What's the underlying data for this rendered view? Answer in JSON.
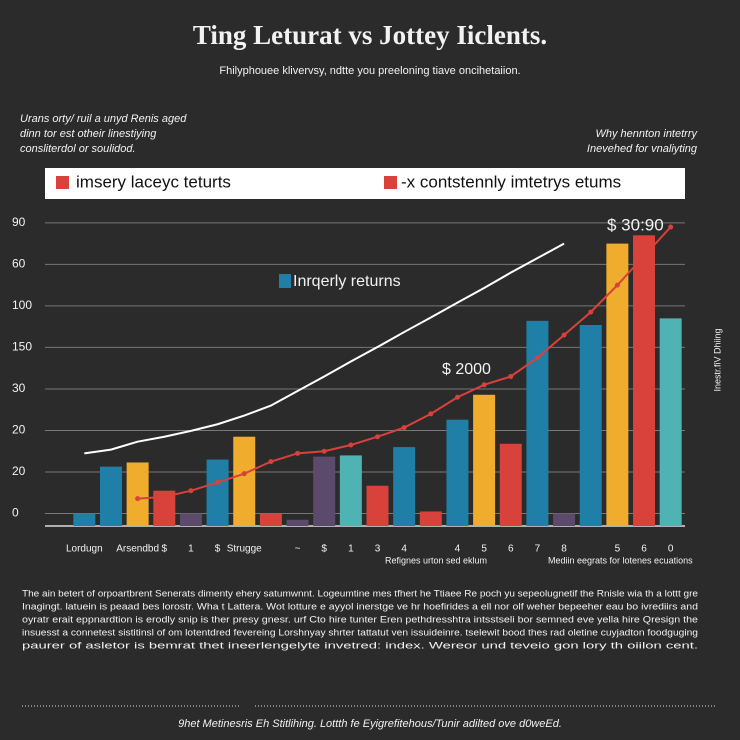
{
  "chart_data": {
    "type": "bar",
    "title": "Ting Leturat vs Jottey Iiclents.",
    "subtitle": "Fhilyphouee klivervsy, ndtte you preeloning tiave oncihetaiion.",
    "legend": [
      {
        "label": "imsery laceyc teturts",
        "color": "#d9413b"
      },
      {
        "label": "-x contstennly imtetrys etums",
        "color": "#d9413b"
      }
    ],
    "annotations": [
      "Inrqerly returns",
      "$ 30:90",
      "$ 2000"
    ],
    "ylabel": "Inestr.fiV Dhiing",
    "xnotes": [
      "Refignes urton sed eklum",
      "Mediin eegrats for lotenes ecuations"
    ],
    "categories": [
      "Lordugn",
      null,
      "Arsendbd",
      "$",
      "1",
      "$",
      "Strugge",
      null,
      "~",
      "$",
      "1",
      "3",
      "4",
      null,
      "4",
      "5",
      "6",
      "7",
      "8",
      null,
      "5",
      "6",
      "0"
    ],
    "ylim": [
      -0.3,
      7.55
    ],
    "yticks": [
      {
        "value": 0,
        "label": "0"
      },
      {
        "value": 1,
        "label": "20"
      },
      {
        "value": 2,
        "label": "20"
      },
      {
        "value": 3,
        "label": "30"
      },
      {
        "value": 4,
        "label": "150"
      },
      {
        "value": 5,
        "label": "100"
      },
      {
        "value": 6,
        "label": "60"
      },
      {
        "value": 7,
        "label": "90"
      }
    ],
    "grid": true,
    "series": [
      {
        "type": "bar",
        "colors": [
          "#1f7fa6",
          "#1f7fa6",
          "#f0ac2c",
          "#d9413b",
          "#5b4a6b",
          "#1f7fa6",
          "#f0ac2c",
          "#d9413b",
          "#5b4a6b",
          "#5b4a6b",
          "#4fb3b3",
          "#d9413b",
          "#1f7fa6",
          "#d9413b",
          "#1f7fa6",
          "#f0ac2c",
          "#d9413b",
          "#1f7fa6",
          "#5b4a6b",
          "#1f7fa6",
          "#f0ac2c",
          "#d9413b",
          "#4fb3b3"
        ],
        "values": [
          0,
          1.13,
          1.23,
          0.55,
          0,
          1.3,
          1.85,
          0,
          -0.15,
          1.37,
          1.4,
          0.67,
          1.6,
          0.05,
          2.26,
          2.86,
          1.68,
          4.64,
          0,
          4.54,
          6.5,
          6.7,
          4.7
        ]
      },
      {
        "type": "line",
        "color": "#ffffff",
        "markers": false,
        "values": [
          1.45,
          1.54,
          1.73,
          1.85,
          1.99,
          2.15,
          2.36,
          2.6,
          2.95,
          3.3,
          3.66,
          4.01,
          4.37,
          4.72,
          5.08,
          5.43,
          5.8,
          6.15,
          6.5,
          null,
          null,
          null,
          null
        ]
      },
      {
        "type": "line",
        "color": "#d9413b",
        "markers": true,
        "values": [
          null,
          null,
          0.36,
          0.4,
          0.55,
          0.75,
          0.96,
          1.25,
          1.45,
          1.5,
          1.65,
          1.85,
          2.07,
          2.4,
          2.8,
          3.1,
          3.3,
          3.75,
          4.3,
          4.85,
          5.5,
          6.2,
          6.9
        ]
      }
    ]
  },
  "notes": {
    "left": [
      "Urans orty/ ruil a unyd Renis aged",
      "dinn tor est otheir linestiying",
      "consliterdol or soulidod."
    ],
    "right": [
      "Why hennton intetrry",
      "Inevehed for vnaliyting"
    ],
    "paragraph": [
      "The ain betert of orpoartbrent Senerats dimenty ehery satumwnnt. Logeumtine mes tfhert he Ttiaee Re poch yu sepeolugnetif the Rnisle wia th a lottt gre",
      "Inagingt. latuein is peaad bes lorostr. Wha t Lattera. Wot lotture e ayyol inerstge ve hr hoefirides a ell nor olf weher bepeeher eau bo ivrediirs and",
      "oyratr erait eppnardtion is erodly snip is ther presy gnesr. urf Cto hire tunter Eren pethdresshtra intsstseli bor semned eve yella hire Qresign the",
      "insuesst a connetest sistitinsl of om lotentdred fevereing Lorshnyay shrter tattatut ven issuideinre. tselewit bood thes rad oletine cuyjadton foodguging",
      "paurer of asletor is bemrat thet ineerlengelyte invetred: index. Wereor und teveio gon lory th oiilon cent."
    ],
    "footer": "9het Metinesris Eh Stitlihing. Lottth fe Eyigrefitehous/Tunir adilted ove d0weEd."
  }
}
